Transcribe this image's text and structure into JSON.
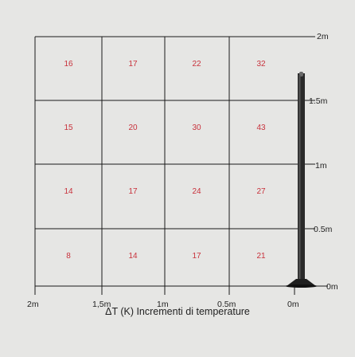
{
  "colors": {
    "background": "#e6e6e4",
    "grid_line": "#1a1a1a",
    "value_text": "#c8323c",
    "label_text": "#222222"
  },
  "grid": {
    "rows": [
      [
        "16",
        "17",
        "22",
        "32"
      ],
      [
        "15",
        "20",
        "30",
        "43"
      ],
      [
        "14",
        "17",
        "24",
        "27"
      ],
      [
        "8",
        "14",
        "17",
        "21"
      ]
    ]
  },
  "height_labels": [
    "2m",
    "1.5m",
    "1m",
    "0.5m",
    "0m"
  ],
  "distance_labels": [
    "2m",
    "1,5m",
    "1m",
    "0.5m",
    "0m"
  ],
  "caption": "ΔT (K) Incrementi di temperature",
  "heater_icon": "standing-patio-heater-icon"
}
